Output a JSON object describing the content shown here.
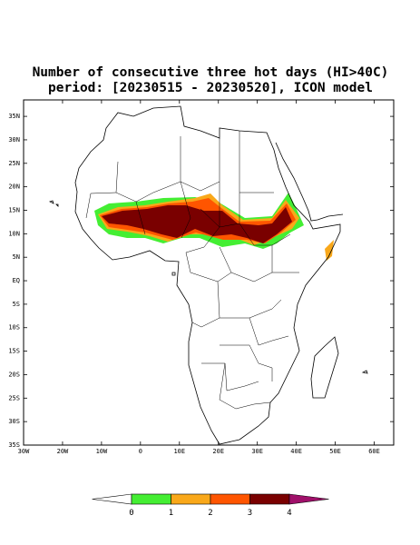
{
  "map": {
    "title_lines": [
      "Number of consecutive three hot days (HI>40C)",
      "period: [20230515 - 20230520], ICON model"
    ],
    "xlim": [
      -30,
      65
    ],
    "ylim": [
      -35,
      38.5
    ],
    "lat_ticks": [
      {
        "value": 35,
        "label": "35N"
      },
      {
        "value": 30,
        "label": "30N"
      },
      {
        "value": 25,
        "label": "25N"
      },
      {
        "value": 20,
        "label": "20N"
      },
      {
        "value": 15,
        "label": "15N"
      },
      {
        "value": 10,
        "label": "10N"
      },
      {
        "value": 5,
        "label": "5N"
      },
      {
        "value": 0,
        "label": "EQ"
      },
      {
        "value": -5,
        "label": "5S"
      },
      {
        "value": -10,
        "label": "10S"
      },
      {
        "value": -15,
        "label": "15S"
      },
      {
        "value": -20,
        "label": "20S"
      },
      {
        "value": -25,
        "label": "25S"
      },
      {
        "value": -30,
        "label": "30S"
      },
      {
        "value": -35,
        "label": "35S"
      }
    ],
    "lon_ticks": [
      {
        "value": -30,
        "label": "30W"
      },
      {
        "value": -20,
        "label": "20W"
      },
      {
        "value": -10,
        "label": "10W"
      },
      0,
      {
        "value": 10,
        "label": "10E"
      },
      {
        "value": 20,
        "label": "20E"
      },
      {
        "value": 30,
        "label": "30E"
      },
      {
        "value": 40,
        "label": "40E"
      },
      {
        "value": 50,
        "label": "50E"
      },
      {
        "value": 60,
        "label": "60E"
      }
    ]
  },
  "colorbar": {
    "levels": [
      0,
      1,
      2,
      3,
      4
    ],
    "colors": [
      "#ffffff",
      "#44ee33",
      "#f9a81a",
      "#ff5500",
      "#7a0000",
      "#a0106a"
    ]
  }
}
